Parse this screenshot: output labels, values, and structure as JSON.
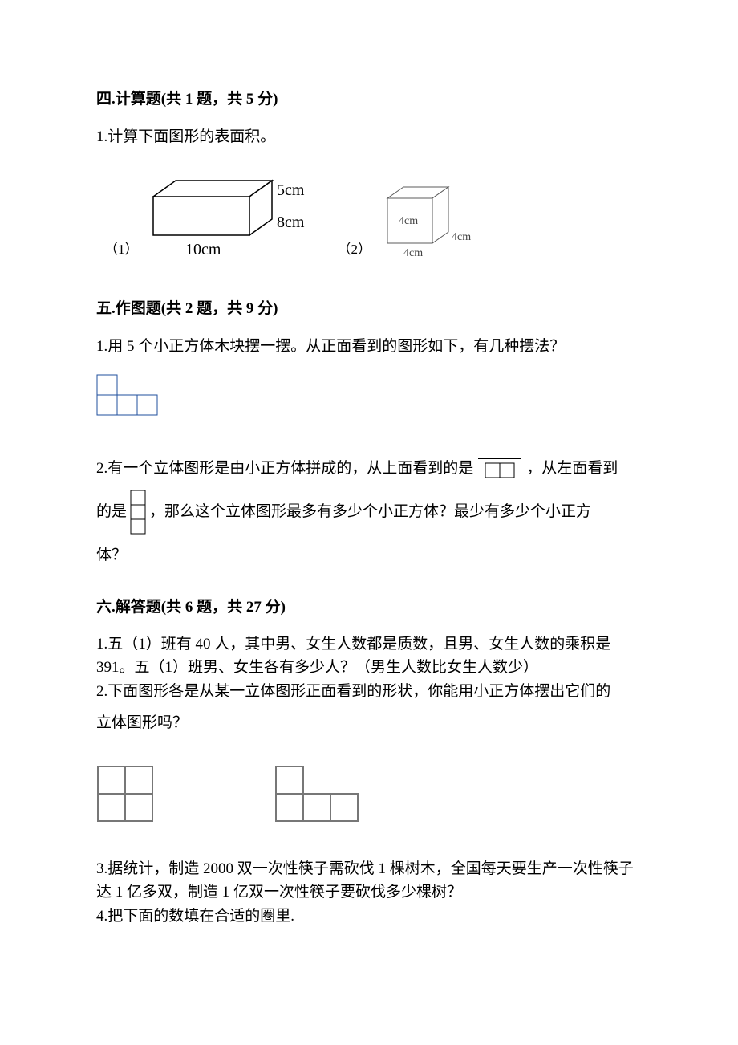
{
  "s4": {
    "heading": "四.计算题(共 1 题，共 5 分)",
    "q1": "1.计算下面图形的表面积。",
    "fig1_num": "（1）",
    "fig2_num": "（2）",
    "cuboid": {
      "dims": {
        "l": 10,
        "w": 8,
        "h": 5,
        "unit": "cm"
      },
      "label_l": "10cm",
      "label_w": "8cm",
      "label_h": "5cm",
      "stroke": "#000000",
      "fill": "#ffffff",
      "font_size": 20
    },
    "cube": {
      "dims": {
        "a": 4,
        "unit": "cm"
      },
      "label_a": "4cm",
      "label_b": "4cm",
      "label_c": "4cm",
      "stroke": "#5b5b5b",
      "fill": "#ffffff",
      "font_size": 14
    }
  },
  "s5": {
    "heading": "五.作图题(共 2 题，共 9 分)",
    "q1": "1.用 5 个小正方体木块摆一摆。从正面看到的图形如下，有几种摆法？",
    "q1_fig": {
      "type": "grid",
      "cell": 25,
      "stroke": "#1f4f9e",
      "stroke_width": 1,
      "cells": [
        {
          "r": 0,
          "c": 0
        },
        {
          "r": 1,
          "c": 0
        },
        {
          "r": 1,
          "c": 1
        },
        {
          "r": 1,
          "c": 2
        }
      ]
    },
    "q2_a": "2.有一个立体图形是由小正方体拼成的，从上面看到的是",
    "q2_b": "，从左面看到",
    "q2_c": "的是",
    "q2_d": "，那么这个立体图形最多有多少个小正方体？最少有多少个小正方",
    "q2_e": "体？",
    "top_view": {
      "cell": 18,
      "stroke": "#000000",
      "stroke_width": 1,
      "cells": [
        {
          "r": 0,
          "c": 0
        },
        {
          "r": 0,
          "c": 1
        }
      ]
    },
    "left_view": {
      "cell": 18,
      "stroke": "#000000",
      "stroke_width": 1,
      "cells": [
        {
          "r": 0,
          "c": 0
        },
        {
          "r": 1,
          "c": 0
        },
        {
          "r": 2,
          "c": 0
        }
      ]
    }
  },
  "s6": {
    "heading": "六.解答题(共 6 题，共 27 分)",
    "q1": "1.五（1）班有 40 人，其中男、女生人数都是质数，且男、女生人数的乘积是391。五（1）班男、女生各有多少人？（男生人数比女生人数少）",
    "q2_a": "2.下面图形各是从某一立体图形正面看到的形状，你能用小正方体摆出它们的",
    "q2_b": "立体图形吗？",
    "q2_fig1": {
      "cell": 34,
      "stroke": "#777777",
      "stroke_width": 2,
      "cells": [
        {
          "r": 0,
          "c": 0
        },
        {
          "r": 0,
          "c": 1
        },
        {
          "r": 1,
          "c": 0
        },
        {
          "r": 1,
          "c": 1
        }
      ]
    },
    "q2_fig2": {
      "cell": 34,
      "stroke": "#777777",
      "stroke_width": 2,
      "cells": [
        {
          "r": 0,
          "c": 0
        },
        {
          "r": 1,
          "c": 0
        },
        {
          "r": 1,
          "c": 1
        },
        {
          "r": 1,
          "c": 2
        }
      ]
    },
    "q3": "3.据统计，制造 2000 双一次性筷子需砍伐 1 棵树木，全国每天要生产一次性筷子达 1 亿多双，制造 1 亿双一次性筷子要砍伐多少棵树？",
    "q4": "4.把下面的数填在合适的圈里."
  }
}
